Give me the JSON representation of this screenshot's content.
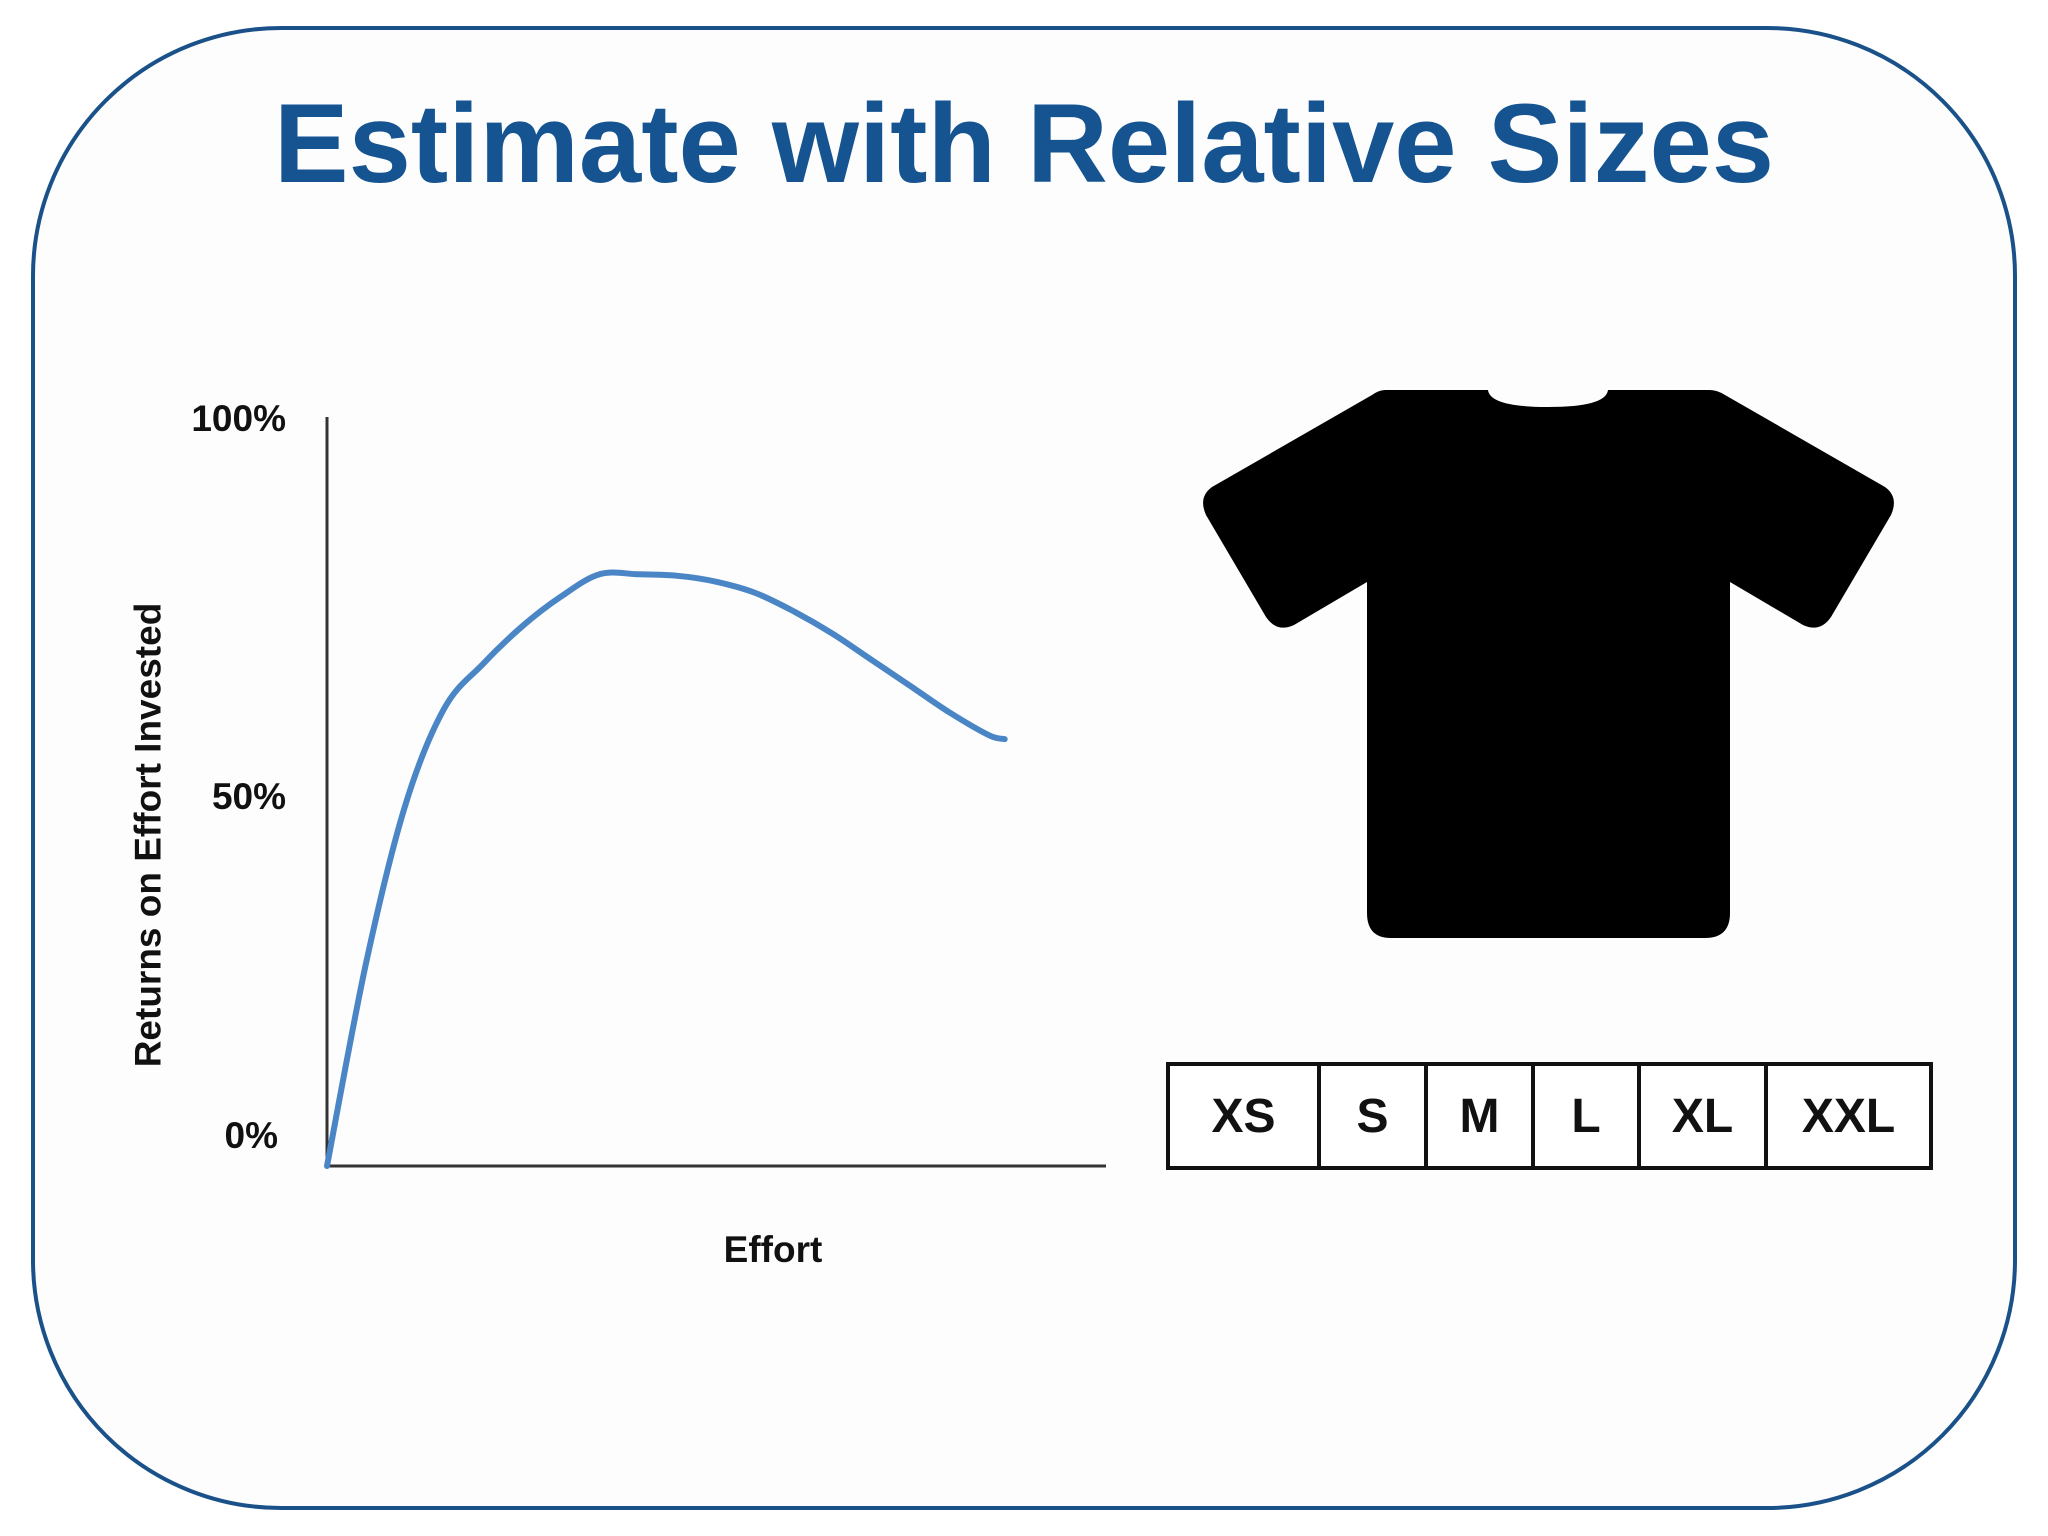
{
  "title": "Estimate with Relative Sizes",
  "colors": {
    "frame_border": "#1a5189",
    "title": "#155491",
    "curve": "#4a86c5",
    "axis": "#333333",
    "shirt": "#000000"
  },
  "chart_data": {
    "type": "line",
    "xlabel": "Effort",
    "ylabel": "Returns on Effort Invested",
    "y_ticks": [
      "100%",
      "50%",
      "0%"
    ],
    "ylim": [
      0,
      100
    ],
    "xlim": [
      0,
      100
    ],
    "grid": false,
    "series": [
      {
        "x": [
          0,
          5,
          10,
          15,
          20,
          25,
          30,
          35,
          40,
          45,
          50,
          55,
          60,
          65,
          70,
          75,
          80,
          85,
          87
        ],
        "y": [
          0,
          27,
          48,
          61,
          67,
          72,
          76,
          79,
          79,
          78.8,
          78,
          76.5,
          74,
          71,
          67.5,
          64,
          60.5,
          57.5,
          57
        ]
      }
    ]
  },
  "shirt_icon": "t-shirt-icon",
  "sizes": [
    "XS",
    "S",
    "M",
    "L",
    "XL",
    "XXL"
  ]
}
